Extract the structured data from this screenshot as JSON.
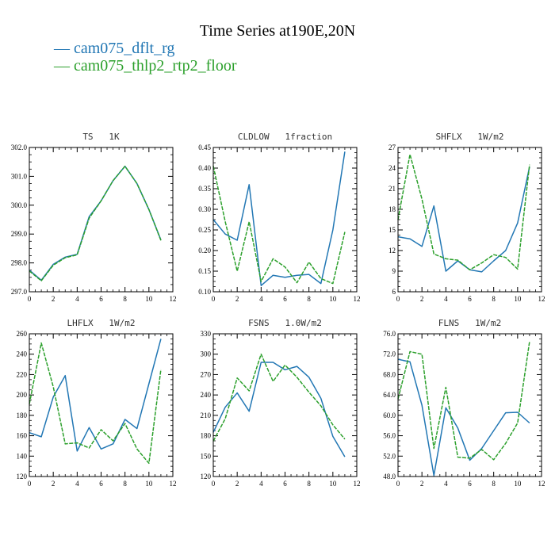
{
  "title": "Time Series at190E,20N",
  "legend": {
    "items": [
      {
        "label": "— cam075_dflt_rg",
        "color": "#2277b4"
      },
      {
        "label": "— cam075_thlp2_rtp2_floor",
        "color": "#2ca02c"
      }
    ]
  },
  "chart_data": [
    {
      "type": "line",
      "title": "TS   1K",
      "xlim": [
        0,
        12
      ],
      "ylim": [
        297.0,
        302.0
      ],
      "xticks": [
        0,
        2,
        4,
        6,
        8,
        10,
        12
      ],
      "xtick_labels": [
        "0",
        "2",
        "4",
        "6",
        "8",
        "10",
        "12"
      ],
      "yticks": [
        297.0,
        298.0,
        299.0,
        300.0,
        301.0,
        302.0
      ],
      "ytick_labels": [
        "297.0",
        "298.0",
        "299.0",
        "300.0",
        "301.0",
        "302.0"
      ],
      "x": [
        0,
        1,
        2,
        3,
        4,
        5,
        6,
        7,
        8,
        9,
        10,
        11
      ],
      "series": [
        {
          "name": "cam075_dflt_rg",
          "color": "#2277b4",
          "dashed": false,
          "values": [
            297.75,
            297.4,
            297.95,
            298.2,
            298.3,
            299.6,
            300.15,
            300.85,
            301.35,
            300.75,
            299.85,
            298.8
          ]
        },
        {
          "name": "cam075_thlp2_rtp2_floor",
          "color": "#2ca02c",
          "dashed": true,
          "values": [
            297.72,
            297.38,
            297.92,
            298.18,
            298.28,
            299.55,
            300.15,
            300.85,
            301.35,
            300.75,
            299.85,
            298.78
          ]
        }
      ]
    },
    {
      "type": "line",
      "title": "CLDLOW   1fraction",
      "xlim": [
        0,
        12
      ],
      "ylim": [
        0.1,
        0.45
      ],
      "xticks": [
        0,
        2,
        4,
        6,
        8,
        10,
        12
      ],
      "xtick_labels": [
        "0",
        "2",
        "4",
        "6",
        "8",
        "10",
        "12"
      ],
      "yticks": [
        0.1,
        0.15,
        0.2,
        0.25,
        0.3,
        0.35,
        0.4,
        0.45
      ],
      "ytick_labels": [
        "0.10",
        "0.15",
        "0.20",
        "0.25",
        "0.30",
        "0.35",
        "0.40",
        "0.45"
      ],
      "x": [
        0,
        1,
        2,
        3,
        4,
        5,
        6,
        7,
        8,
        9,
        10,
        11
      ],
      "series": [
        {
          "name": "cam075_dflt_rg",
          "color": "#2277b4",
          "dashed": false,
          "values": [
            0.275,
            0.24,
            0.225,
            0.36,
            0.115,
            0.14,
            0.135,
            0.14,
            0.142,
            0.12,
            0.25,
            0.44
          ]
        },
        {
          "name": "cam075_thlp2_rtp2_floor",
          "color": "#2ca02c",
          "dashed": true,
          "values": [
            0.405,
            0.27,
            0.15,
            0.27,
            0.125,
            0.18,
            0.16,
            0.122,
            0.172,
            0.132,
            0.12,
            0.245
          ]
        }
      ]
    },
    {
      "type": "line",
      "title": "SHFLX   1W/m2",
      "xlim": [
        0,
        12
      ],
      "ylim": [
        6,
        27
      ],
      "xticks": [
        0,
        2,
        4,
        6,
        8,
        10,
        12
      ],
      "xtick_labels": [
        "0",
        "2",
        "4",
        "6",
        "8",
        "10",
        "12"
      ],
      "yticks": [
        6,
        9,
        12,
        15,
        18,
        21,
        24,
        27
      ],
      "ytick_labels": [
        "6",
        "9",
        "12",
        "15",
        "18",
        "21",
        "24",
        "27"
      ],
      "x": [
        0,
        1,
        2,
        3,
        4,
        5,
        6,
        7,
        8,
        9,
        10,
        11
      ],
      "series": [
        {
          "name": "cam075_dflt_rg",
          "color": "#2277b4",
          "dashed": false,
          "values": [
            14.0,
            13.7,
            12.6,
            18.5,
            9.0,
            10.5,
            9.2,
            8.9,
            10.5,
            12.0,
            16.0,
            24.2
          ]
        },
        {
          "name": "cam075_thlp2_rtp2_floor",
          "color": "#2ca02c",
          "dashed": true,
          "values": [
            16.5,
            26.0,
            19.5,
            11.5,
            10.8,
            10.6,
            9.2,
            10.2,
            11.4,
            11.0,
            9.3,
            24.5
          ]
        }
      ]
    },
    {
      "type": "line",
      "title": "LHFLX   1W/m2",
      "xlim": [
        0,
        12
      ],
      "ylim": [
        120,
        260
      ],
      "xticks": [
        0,
        2,
        4,
        6,
        8,
        10,
        12
      ],
      "xtick_labels": [
        "0",
        "2",
        "4",
        "6",
        "8",
        "10",
        "12"
      ],
      "yticks": [
        120,
        140,
        160,
        180,
        200,
        220,
        240,
        260
      ],
      "ytick_labels": [
        "120",
        "140",
        "160",
        "180",
        "200",
        "220",
        "240",
        "260"
      ],
      "x": [
        0,
        1,
        2,
        3,
        4,
        5,
        6,
        7,
        8,
        9,
        10,
        11
      ],
      "series": [
        {
          "name": "cam075_dflt_rg",
          "color": "#2277b4",
          "dashed": false,
          "values": [
            163,
            159,
            198,
            219,
            145,
            168,
            147,
            152,
            176,
            167,
            211,
            255
          ]
        },
        {
          "name": "cam075_thlp2_rtp2_floor",
          "color": "#2ca02c",
          "dashed": true,
          "values": [
            191,
            251,
            208,
            152,
            153,
            148,
            166,
            155,
            172,
            147,
            133,
            225
          ]
        }
      ]
    },
    {
      "type": "line",
      "title": "FSNS   1.0W/m2",
      "xlim": [
        0,
        12
      ],
      "ylim": [
        120,
        330
      ],
      "xticks": [
        0,
        2,
        4,
        6,
        8,
        10,
        12
      ],
      "xtick_labels": [
        "0",
        "2",
        "4",
        "6",
        "8",
        "10",
        "12"
      ],
      "yticks": [
        120,
        150,
        180,
        210,
        240,
        270,
        300,
        330
      ],
      "ytick_labels": [
        "120",
        "150",
        "180",
        "210",
        "240",
        "270",
        "300",
        "330"
      ],
      "x": [
        0,
        1,
        2,
        3,
        4,
        5,
        6,
        7,
        8,
        9,
        10,
        11
      ],
      "series": [
        {
          "name": "cam075_dflt_rg",
          "color": "#2277b4",
          "dashed": false,
          "values": [
            185,
            222,
            243,
            216,
            288,
            288,
            277,
            282,
            266,
            235,
            179,
            149
          ]
        },
        {
          "name": "cam075_thlp2_rtp2_floor",
          "color": "#2ca02c",
          "dashed": true,
          "values": [
            172,
            205,
            265,
            246,
            300,
            260,
            284,
            266,
            244,
            224,
            196,
            175
          ]
        }
      ]
    },
    {
      "type": "line",
      "title": "FLNS   1W/m2",
      "xlim": [
        0,
        12
      ],
      "ylim": [
        48.0,
        76.0
      ],
      "xticks": [
        0,
        2,
        4,
        6,
        8,
        10,
        12
      ],
      "xtick_labels": [
        "0",
        "2",
        "4",
        "6",
        "8",
        "10",
        "12"
      ],
      "yticks": [
        48.0,
        52.0,
        56.0,
        60.0,
        64.0,
        68.0,
        72.0,
        76.0
      ],
      "ytick_labels": [
        "48.0",
        "52.0",
        "56.0",
        "60.0",
        "64.0",
        "68.0",
        "72.0",
        "76.0"
      ],
      "x": [
        0,
        1,
        2,
        3,
        4,
        5,
        6,
        7,
        8,
        9,
        10,
        11
      ],
      "series": [
        {
          "name": "cam075_dflt_rg",
          "color": "#2277b4",
          "dashed": false,
          "values": [
            71.0,
            70.5,
            62.0,
            48.2,
            61.5,
            57.5,
            51.2,
            53.5,
            57.0,
            60.5,
            60.6,
            58.5
          ]
        },
        {
          "name": "cam075_thlp2_rtp2_floor",
          "color": "#2ca02c",
          "dashed": true,
          "values": [
            63.2,
            72.5,
            72.0,
            53.5,
            65.5,
            51.8,
            51.6,
            53.3,
            51.3,
            54.5,
            58.5,
            74.5
          ]
        }
      ]
    }
  ]
}
